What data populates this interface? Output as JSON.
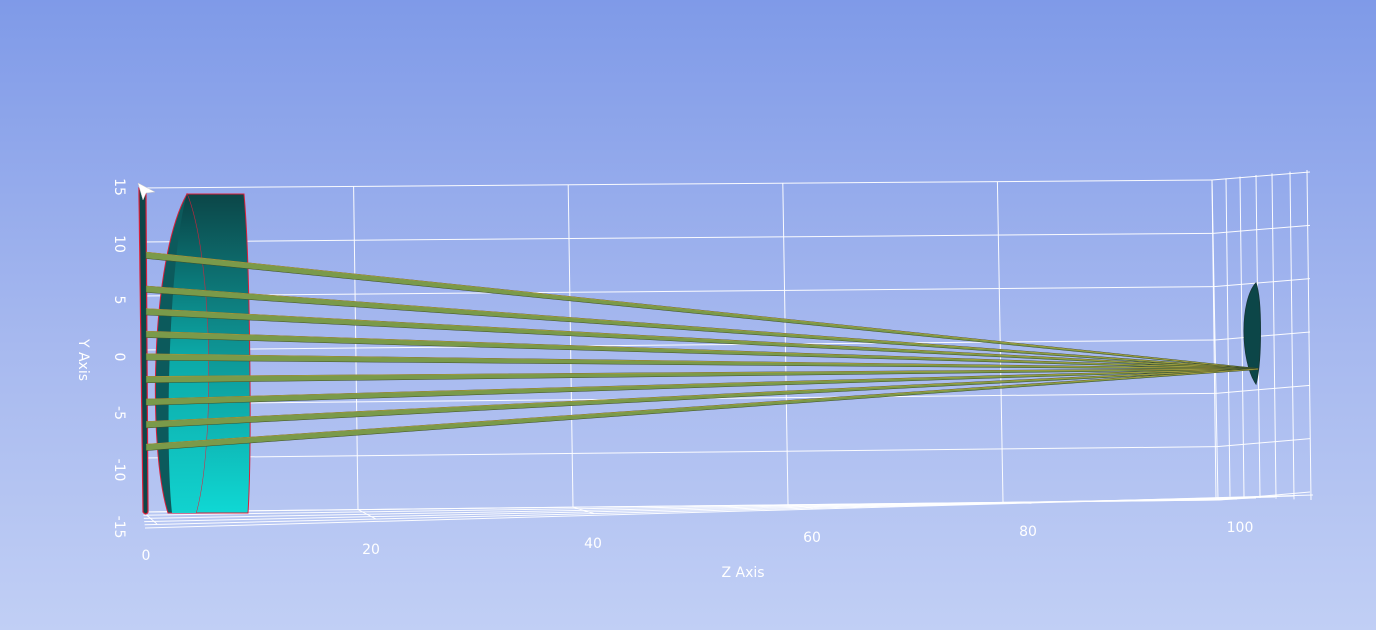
{
  "scene": {
    "background_top": "#7f9ae8",
    "background_bottom": "#c1cff5",
    "grid_color": "#ffffff",
    "lens_colors": {
      "light": "#0fd8d4",
      "dark": "#0c4648",
      "edge": "#d8203a"
    },
    "ray_color": "#7a9a4a"
  },
  "axes": {
    "x_title": "Z Axis",
    "y_title": "Y Axis",
    "z_ticks": [
      "0",
      "20",
      "40",
      "60",
      "80",
      "100"
    ],
    "y_ticks": [
      "15",
      "10",
      "5",
      "0",
      "-5",
      "-10",
      "-15"
    ]
  },
  "optics": {
    "ray_heights": [
      9,
      6,
      4,
      2,
      0,
      -2,
      -4,
      -6,
      -8
    ],
    "focus": {
      "z": 102,
      "y": -1.2
    },
    "lens_z_range": [
      0,
      9
    ],
    "detector_z": 102
  }
}
